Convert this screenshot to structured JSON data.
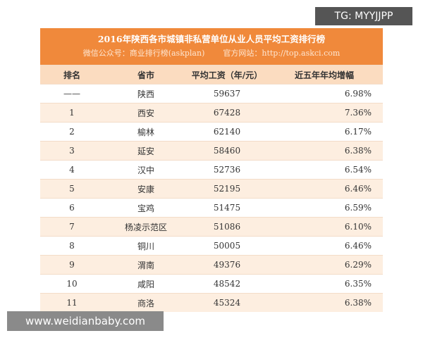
{
  "header": {
    "title": "2016年陕西各市城镇非私营单位从业人员平均工资排行榜",
    "wechat": "微信公众号：商业排行榜(askplan)",
    "website": "官方网站：http://top.askci.com"
  },
  "table": {
    "columns": [
      "排名",
      "省市",
      "平均工资（年/元）",
      "近五年年均增幅"
    ],
    "rows": [
      [
        "——",
        "陕西",
        "59637",
        "6.98%"
      ],
      [
        "1",
        "西安",
        "67428",
        "7.36%"
      ],
      [
        "2",
        "榆林",
        "62140",
        "6.17%"
      ],
      [
        "3",
        "延安",
        "58460",
        "6.38%"
      ],
      [
        "4",
        "汉中",
        "52736",
        "6.54%"
      ],
      [
        "5",
        "安康",
        "52195",
        "6.46%"
      ],
      [
        "6",
        "宝鸡",
        "51475",
        "6.59%"
      ],
      [
        "7",
        "杨凌示范区",
        "51086",
        "6.10%"
      ],
      [
        "8",
        "铜川",
        "50005",
        "6.46%"
      ],
      [
        "9",
        "渭南",
        "49376",
        "6.29%"
      ],
      [
        "10",
        "咸阳",
        "48542",
        "6.35%"
      ],
      [
        "11",
        "商洛",
        "45324",
        "6.38%"
      ]
    ]
  },
  "watermarks": {
    "top": "TG: MYYJJPP",
    "bottom": "www.weidianbaby.com"
  }
}
